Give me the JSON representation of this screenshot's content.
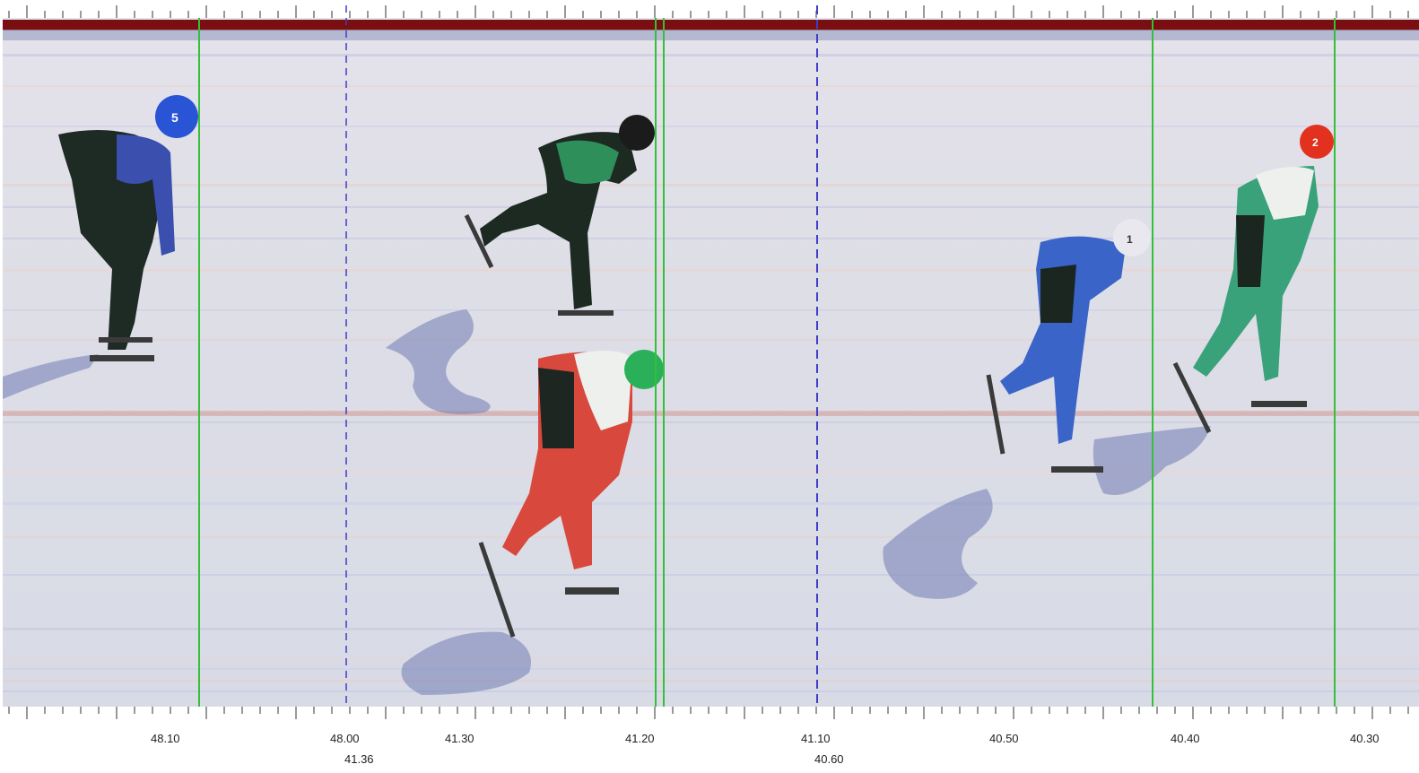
{
  "axis": {
    "tick_labels": [
      "48.10",
      "48.00",
      "41.30",
      "41.20",
      "41.10",
      "40.50",
      "40.40",
      "40.30"
    ],
    "segment_start_labels": [
      "41.36",
      "40.60"
    ]
  },
  "skaters": [
    {
      "helmet_number": "5",
      "helmet_color": "#2a54d6",
      "suit_color": "#3a4fae"
    },
    {
      "helmet_number": "",
      "helmet_color": "#1b1b1b",
      "suit_color": "#2f8f5a"
    },
    {
      "helmet_number": "",
      "helmet_color": "#2bb05a",
      "suit_color": "#d9483c"
    },
    {
      "helmet_number": "1",
      "helmet_color": "#e8e8ee",
      "suit_color": "#3a64c8"
    },
    {
      "helmet_number": "2",
      "helmet_color": "#e2311e",
      "suit_color": "#3aa27a"
    }
  ],
  "colors": {
    "finish_line": "#35c03a",
    "segment_marker": "#3d3dc8",
    "top_band": "#7a0f12",
    "ice": "#d9dde8"
  }
}
